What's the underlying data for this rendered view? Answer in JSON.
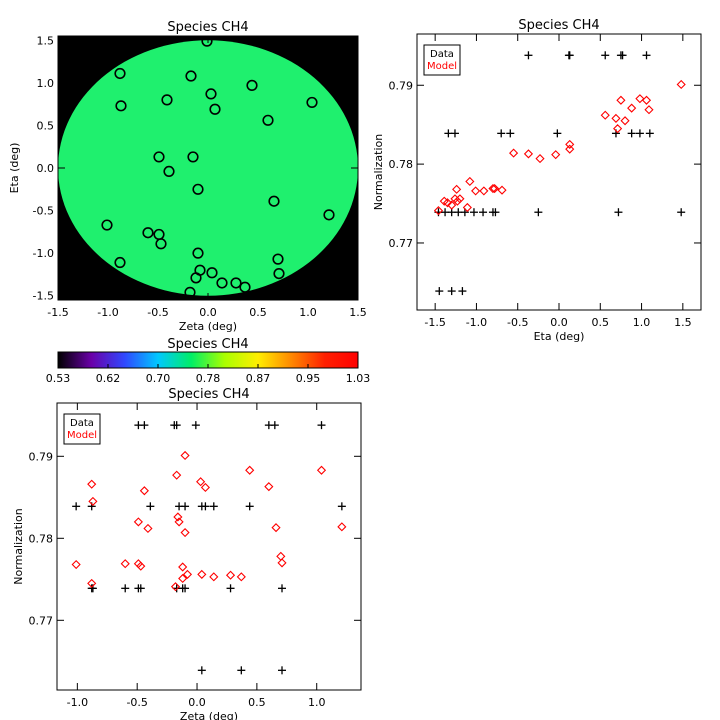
{
  "chart_data": [
    {
      "id": "scatter",
      "type": "scatter",
      "title": "Species CH4",
      "xlabel": "Zeta (deg)",
      "ylabel": "Eta (deg)",
      "xlim": [
        -1.5,
        1.5
      ],
      "ylim": [
        -1.55,
        1.55
      ],
      "xticks": [
        -1.5,
        -1.0,
        -0.5,
        0.0,
        0.5,
        1.0,
        1.5
      ],
      "yticks": [
        -1.5,
        -1.0,
        -0.5,
        0.0,
        0.5,
        1.0,
        1.5
      ],
      "background_color": "#000000",
      "disk_color": "#1ff06e",
      "disk_radius": 1.5,
      "marker": "circle",
      "points": [
        {
          "x": -0.01,
          "y": 1.49
        },
        {
          "x": -0.88,
          "y": 1.11
        },
        {
          "x": -0.17,
          "y": 1.08
        },
        {
          "x": 0.44,
          "y": 0.97
        },
        {
          "x": 0.03,
          "y": 0.87
        },
        {
          "x": -0.41,
          "y": 0.8
        },
        {
          "x": -0.87,
          "y": 0.73
        },
        {
          "x": 0.07,
          "y": 0.69
        },
        {
          "x": 1.04,
          "y": 0.77
        },
        {
          "x": 0.6,
          "y": 0.56
        },
        {
          "x": -0.49,
          "y": 0.13
        },
        {
          "x": -0.15,
          "y": 0.13
        },
        {
          "x": -0.39,
          "y": -0.04
        },
        {
          "x": -0.1,
          "y": -0.25
        },
        {
          "x": 0.66,
          "y": -0.39
        },
        {
          "x": 1.21,
          "y": -0.55
        },
        {
          "x": -1.01,
          "y": -0.67
        },
        {
          "x": -0.6,
          "y": -0.76
        },
        {
          "x": -0.49,
          "y": -0.78
        },
        {
          "x": -0.47,
          "y": -0.89
        },
        {
          "x": -0.1,
          "y": -1.0
        },
        {
          "x": 0.7,
          "y": -1.07
        },
        {
          "x": -0.88,
          "y": -1.11
        },
        {
          "x": -0.08,
          "y": -1.2
        },
        {
          "x": 0.04,
          "y": -1.23
        },
        {
          "x": 0.71,
          "y": -1.24
        },
        {
          "x": -0.12,
          "y": -1.29
        },
        {
          "x": 0.14,
          "y": -1.35
        },
        {
          "x": 0.28,
          "y": -1.35
        },
        {
          "x": 0.37,
          "y": -1.4
        },
        {
          "x": -0.18,
          "y": -1.46
        }
      ]
    },
    {
      "id": "eta",
      "type": "scatter",
      "title": "Species CH4",
      "xlabel": "Eta (deg)",
      "ylabel": "Normalization",
      "xlim": [
        -1.72,
        1.72
      ],
      "ylim": [
        0.7615,
        0.7965
      ],
      "xticks": [
        -1.5,
        -1.0,
        -0.5,
        0.0,
        0.5,
        1.0,
        1.5
      ],
      "yticks": [
        0.77,
        0.78,
        0.79
      ],
      "legend": {
        "position": "top-left",
        "entries": [
          {
            "label": "Data",
            "color": "#000000"
          },
          {
            "label": "Model",
            "color": "#ff0000"
          }
        ]
      },
      "series": [
        {
          "name": "Data",
          "color": "#000000",
          "marker": "plus",
          "points": [
            {
              "x": -1.45,
              "y": 0.7639
            },
            {
              "x": -1.3,
              "y": 0.7639
            },
            {
              "x": -1.17,
              "y": 0.7639
            },
            {
              "x": -1.46,
              "y": 0.7739
            },
            {
              "x": -1.38,
              "y": 0.7739
            },
            {
              "x": -1.3,
              "y": 0.7739
            },
            {
              "x": -1.22,
              "y": 0.7739
            },
            {
              "x": -1.14,
              "y": 0.7739
            },
            {
              "x": -1.03,
              "y": 0.7739
            },
            {
              "x": -0.92,
              "y": 0.7739
            },
            {
              "x": -0.8,
              "y": 0.7739
            },
            {
              "x": -0.77,
              "y": 0.7739
            },
            {
              "x": -0.25,
              "y": 0.7739
            },
            {
              "x": 0.72,
              "y": 0.7739
            },
            {
              "x": 1.48,
              "y": 0.7739
            },
            {
              "x": -1.34,
              "y": 0.7839
            },
            {
              "x": -1.26,
              "y": 0.7839
            },
            {
              "x": -0.7,
              "y": 0.7839
            },
            {
              "x": -0.59,
              "y": 0.7839
            },
            {
              "x": -0.02,
              "y": 0.7839
            },
            {
              "x": 0.69,
              "y": 0.7839
            },
            {
              "x": 0.88,
              "y": 0.7839
            },
            {
              "x": 0.98,
              "y": 0.7839
            },
            {
              "x": 1.1,
              "y": 0.7839
            },
            {
              "x": -0.37,
              "y": 0.7938
            },
            {
              "x": 0.12,
              "y": 0.7938
            },
            {
              "x": 0.13,
              "y": 0.7938
            },
            {
              "x": 0.56,
              "y": 0.7938
            },
            {
              "x": 0.75,
              "y": 0.7938
            },
            {
              "x": 0.77,
              "y": 0.7938
            },
            {
              "x": 1.06,
              "y": 0.7938
            }
          ]
        },
        {
          "name": "Model",
          "color": "#ff0000",
          "marker": "diamond",
          "points": [
            {
              "x": -1.46,
              "y": 0.7741
            },
            {
              "x": -1.39,
              "y": 0.7753
            },
            {
              "x": -1.35,
              "y": 0.7751
            },
            {
              "x": -1.3,
              "y": 0.7748
            },
            {
              "x": -1.26,
              "y": 0.7756
            },
            {
              "x": -1.24,
              "y": 0.7768
            },
            {
              "x": -1.23,
              "y": 0.7753
            },
            {
              "x": -1.2,
              "y": 0.7756
            },
            {
              "x": -1.11,
              "y": 0.7745
            },
            {
              "x": -1.08,
              "y": 0.7778
            },
            {
              "x": -1.01,
              "y": 0.7766
            },
            {
              "x": -0.91,
              "y": 0.7766
            },
            {
              "x": -0.8,
              "y": 0.7769
            },
            {
              "x": -0.78,
              "y": 0.7769
            },
            {
              "x": -0.69,
              "y": 0.7767
            },
            {
              "x": -0.55,
              "y": 0.7814
            },
            {
              "x": -0.37,
              "y": 0.7813
            },
            {
              "x": -0.23,
              "y": 0.7807
            },
            {
              "x": -0.04,
              "y": 0.7812
            },
            {
              "x": 0.13,
              "y": 0.7825
            },
            {
              "x": 0.13,
              "y": 0.7819
            },
            {
              "x": 0.56,
              "y": 0.7862
            },
            {
              "x": 0.69,
              "y": 0.7858
            },
            {
              "x": 0.71,
              "y": 0.7845
            },
            {
              "x": 0.75,
              "y": 0.7881
            },
            {
              "x": 0.8,
              "y": 0.7855
            },
            {
              "x": 0.88,
              "y": 0.7871
            },
            {
              "x": 0.98,
              "y": 0.7883
            },
            {
              "x": 1.06,
              "y": 0.7881
            },
            {
              "x": 1.09,
              "y": 0.7869
            },
            {
              "x": 1.48,
              "y": 0.7901
            }
          ]
        }
      ]
    },
    {
      "id": "colorbar",
      "type": "colorbar",
      "title": "Species CH4",
      "range": [
        0.53,
        1.03
      ],
      "tick_labels": [
        "0.53",
        "0.62",
        "0.70",
        "0.78",
        "0.87",
        "0.95",
        "1.03"
      ],
      "colormap": [
        "#000000",
        "#6a00a8",
        "#3048ff",
        "#00c8ff",
        "#00ee66",
        "#aaff00",
        "#ffee00",
        "#ff8800",
        "#ff2000",
        "#ff0000"
      ]
    },
    {
      "id": "zeta",
      "type": "scatter",
      "title": "Species CH4",
      "xlabel": "Zeta (deg)",
      "ylabel": "Normalization",
      "xlim": [
        -1.17,
        1.37
      ],
      "ylim": [
        0.7615,
        0.7965
      ],
      "xticks": [
        -1.0,
        -0.5,
        0.0,
        0.5,
        1.0
      ],
      "yticks": [
        0.77,
        0.78,
        0.79
      ],
      "legend": {
        "position": "top-left",
        "entries": [
          {
            "label": "Data",
            "color": "#000000"
          },
          {
            "label": "Model",
            "color": "#ff0000"
          }
        ]
      },
      "series": [
        {
          "name": "Data",
          "color": "#000000",
          "marker": "plus",
          "points": [
            {
              "x": 0.04,
              "y": 0.7639
            },
            {
              "x": 0.37,
              "y": 0.7639
            },
            {
              "x": 0.71,
              "y": 0.7639
            },
            {
              "x": -0.87,
              "y": 0.7739
            },
            {
              "x": -0.88,
              "y": 0.7739
            },
            {
              "x": -0.6,
              "y": 0.7739
            },
            {
              "x": -0.49,
              "y": 0.7739
            },
            {
              "x": -0.47,
              "y": 0.7739
            },
            {
              "x": -0.17,
              "y": 0.7739
            },
            {
              "x": -0.1,
              "y": 0.7739
            },
            {
              "x": -0.12,
              "y": 0.7739
            },
            {
              "x": 0.28,
              "y": 0.7739
            },
            {
              "x": 0.71,
              "y": 0.7739
            },
            {
              "x": -1.01,
              "y": 0.7839
            },
            {
              "x": -0.88,
              "y": 0.7839
            },
            {
              "x": -0.39,
              "y": 0.7839
            },
            {
              "x": -0.15,
              "y": 0.7839
            },
            {
              "x": -0.1,
              "y": 0.7839
            },
            {
              "x": 0.04,
              "y": 0.7839
            },
            {
              "x": 0.07,
              "y": 0.7839
            },
            {
              "x": 0.14,
              "y": 0.7839
            },
            {
              "x": 0.44,
              "y": 0.7839
            },
            {
              "x": 1.21,
              "y": 0.7839
            },
            {
              "x": -0.49,
              "y": 0.7938
            },
            {
              "x": -0.44,
              "y": 0.7938
            },
            {
              "x": -0.19,
              "y": 0.7938
            },
            {
              "x": -0.17,
              "y": 0.7938
            },
            {
              "x": -0.01,
              "y": 0.7938
            },
            {
              "x": 0.6,
              "y": 0.7938
            },
            {
              "x": 0.65,
              "y": 0.7938
            },
            {
              "x": 1.04,
              "y": 0.7938
            }
          ]
        },
        {
          "name": "Model",
          "color": "#ff0000",
          "marker": "diamond",
          "points": [
            {
              "x": -1.01,
              "y": 0.7768
            },
            {
              "x": -0.88,
              "y": 0.7745
            },
            {
              "x": -0.87,
              "y": 0.7845
            },
            {
              "x": -0.88,
              "y": 0.7866
            },
            {
              "x": -0.6,
              "y": 0.7769
            },
            {
              "x": -0.49,
              "y": 0.782
            },
            {
              "x": -0.49,
              "y": 0.7769
            },
            {
              "x": -0.47,
              "y": 0.7766
            },
            {
              "x": -0.44,
              "y": 0.7858
            },
            {
              "x": -0.41,
              "y": 0.7812
            },
            {
              "x": -0.17,
              "y": 0.7877
            },
            {
              "x": -0.18,
              "y": 0.7741
            },
            {
              "x": -0.16,
              "y": 0.7826
            },
            {
              "x": -0.15,
              "y": 0.782
            },
            {
              "x": -0.12,
              "y": 0.7751
            },
            {
              "x": -0.12,
              "y": 0.7765
            },
            {
              "x": -0.1,
              "y": 0.7807
            },
            {
              "x": -0.1,
              "y": 0.7901
            },
            {
              "x": -0.08,
              "y": 0.7756
            },
            {
              "x": 0.03,
              "y": 0.7869
            },
            {
              "x": 0.04,
              "y": 0.7756
            },
            {
              "x": 0.07,
              "y": 0.7862
            },
            {
              "x": 0.14,
              "y": 0.7753
            },
            {
              "x": 0.28,
              "y": 0.7755
            },
            {
              "x": 0.37,
              "y": 0.7753
            },
            {
              "x": 0.44,
              "y": 0.7883
            },
            {
              "x": 0.6,
              "y": 0.7863
            },
            {
              "x": 0.66,
              "y": 0.7813
            },
            {
              "x": 0.7,
              "y": 0.7778
            },
            {
              "x": 0.71,
              "y": 0.777
            },
            {
              "x": 1.04,
              "y": 0.7883
            },
            {
              "x": 1.21,
              "y": 0.7814
            }
          ]
        }
      ]
    }
  ]
}
